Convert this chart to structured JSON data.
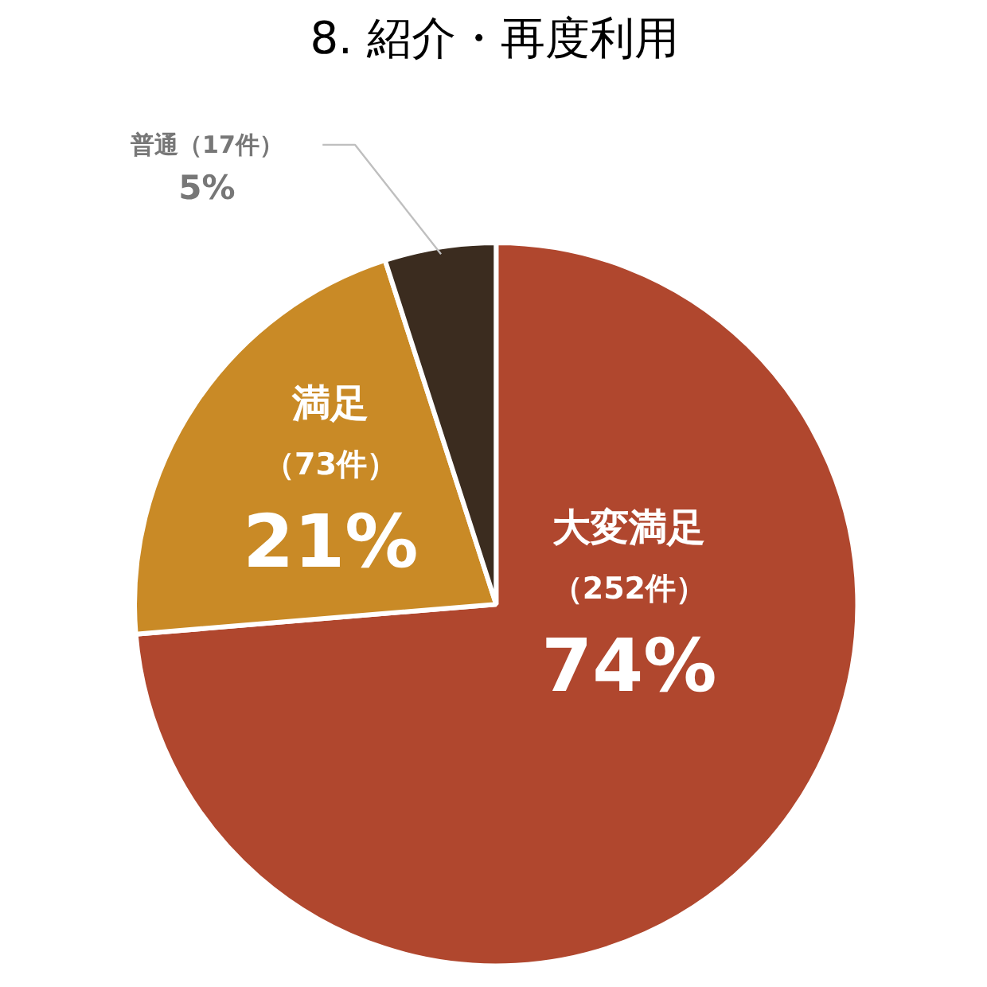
{
  "chart_data": {
    "type": "pie",
    "title": "8. 紹介・再度利用",
    "categories": [
      "大変満足",
      "満足",
      "普通"
    ],
    "values": [
      252,
      73,
      17
    ],
    "colors": [
      "#b0472e",
      "#c98a26",
      "#3b2c1f"
    ],
    "value_labels": [
      "（252件）\n74%",
      "（73件）\n21%",
      "（17件）\n5%"
    ]
  }
}
